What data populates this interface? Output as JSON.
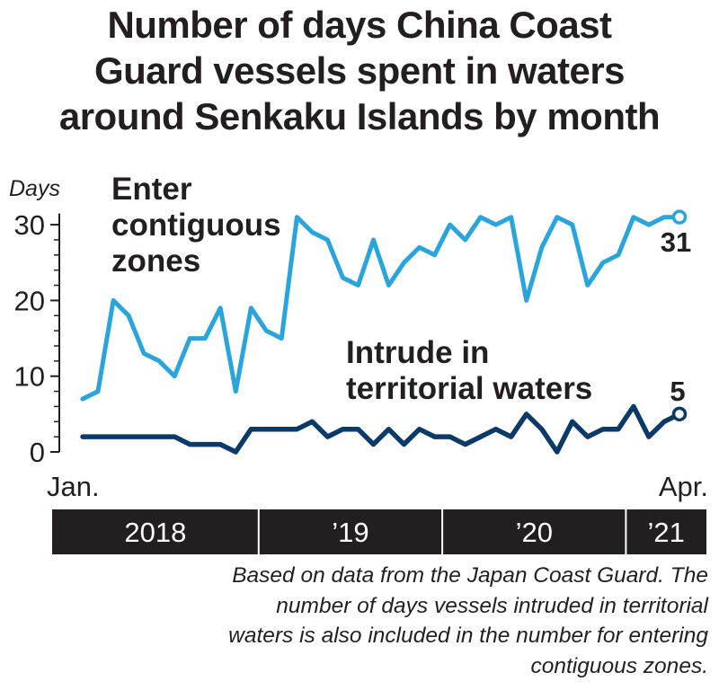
{
  "title_lines": [
    "Number of days China Coast",
    "Guard vessels spent in waters",
    "around Senkaku Islands by month"
  ],
  "note_lines": [
    "Based on data from the Japan Coast Guard. The",
    "number of days vessels intruded in territorial",
    "waters is also included in the number for entering",
    "contiguous zones."
  ],
  "chart_data": {
    "type": "line",
    "title": "Number of days China Coast Guard vessels spent in waters around Senkaku Islands by month",
    "ylabel": "Days",
    "ylim": [
      0,
      31
    ],
    "yticks": [
      0,
      10,
      20,
      30
    ],
    "x_start_label": "Jan.",
    "x_end_label": "Apr.",
    "x": [
      "2018-01",
      "2018-02",
      "2018-03",
      "2018-04",
      "2018-05",
      "2018-06",
      "2018-07",
      "2018-08",
      "2018-09",
      "2018-10",
      "2018-11",
      "2018-12",
      "2019-01",
      "2019-02",
      "2019-03",
      "2019-04",
      "2019-05",
      "2019-06",
      "2019-07",
      "2019-08",
      "2019-09",
      "2019-10",
      "2019-11",
      "2019-12",
      "2020-01",
      "2020-02",
      "2020-03",
      "2020-04",
      "2020-05",
      "2020-06",
      "2020-07",
      "2020-08",
      "2020-09",
      "2020-10",
      "2020-11",
      "2020-12",
      "2021-01",
      "2021-02",
      "2021-03",
      "2021-04"
    ],
    "years": [
      {
        "label": "2018",
        "months": 12
      },
      {
        "label": "’19",
        "months": 12
      },
      {
        "label": "’20",
        "months": 12
      },
      {
        "label": "’21",
        "months": 4
      }
    ],
    "series": [
      {
        "name_lines": [
          "Enter",
          "contiguous",
          "zones"
        ],
        "color": "#2aa4dc",
        "end_label": "31",
        "values": [
          7,
          8,
          20,
          18,
          13,
          12,
          10,
          15,
          15,
          19,
          8,
          19,
          16,
          15,
          31,
          29,
          28,
          23,
          22,
          28,
          22,
          25,
          27,
          26,
          30,
          28,
          31,
          30,
          31,
          20,
          27,
          31,
          30,
          22,
          25,
          26,
          31,
          30,
          31,
          31
        ]
      },
      {
        "name_lines": [
          "Intrude in",
          "territorial waters"
        ],
        "color": "#0b3a68",
        "end_label": "5",
        "values": [
          2,
          2,
          2,
          2,
          2,
          2,
          2,
          1,
          1,
          1,
          0,
          3,
          3,
          3,
          3,
          4,
          2,
          3,
          3,
          1,
          3,
          1,
          3,
          2,
          2,
          1,
          2,
          3,
          2,
          5,
          3,
          0,
          4,
          2,
          3,
          3,
          6,
          2,
          4,
          5
        ]
      }
    ]
  }
}
